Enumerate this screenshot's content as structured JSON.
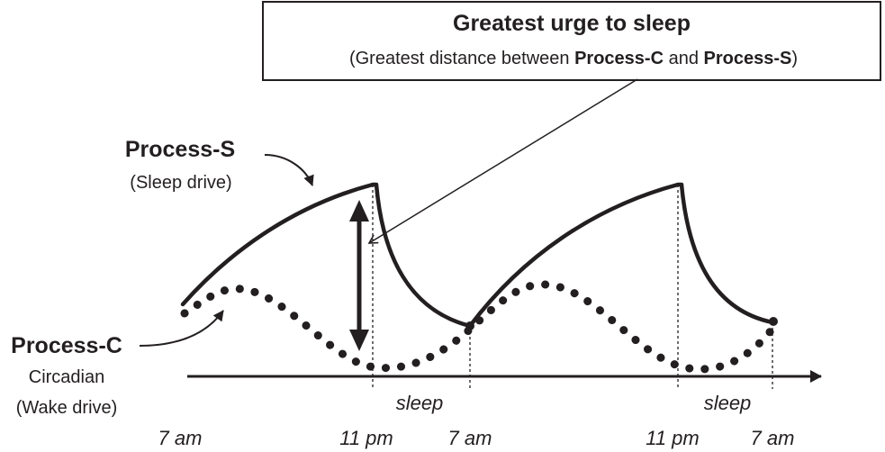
{
  "callout": {
    "title": "Greatest urge to sleep",
    "subtitle_prefix": "(Greatest distance between ",
    "subtitle_c": "Process-C",
    "subtitle_and": " and ",
    "subtitle_s": "Process-S",
    "subtitle_suffix": ")"
  },
  "process_s": {
    "title": "Process-S",
    "subtitle": "(Sleep drive)"
  },
  "process_c": {
    "title": "Process-C",
    "line2": "Circadian",
    "line3": "(Wake drive)"
  },
  "time_labels": [
    "7 am",
    "11 pm",
    "7 am",
    "11 pm",
    "7 am"
  ],
  "sleep_labels": [
    "sleep",
    "sleep"
  ],
  "colors": {
    "ink": "#231f20",
    "background": "#ffffff"
  }
}
